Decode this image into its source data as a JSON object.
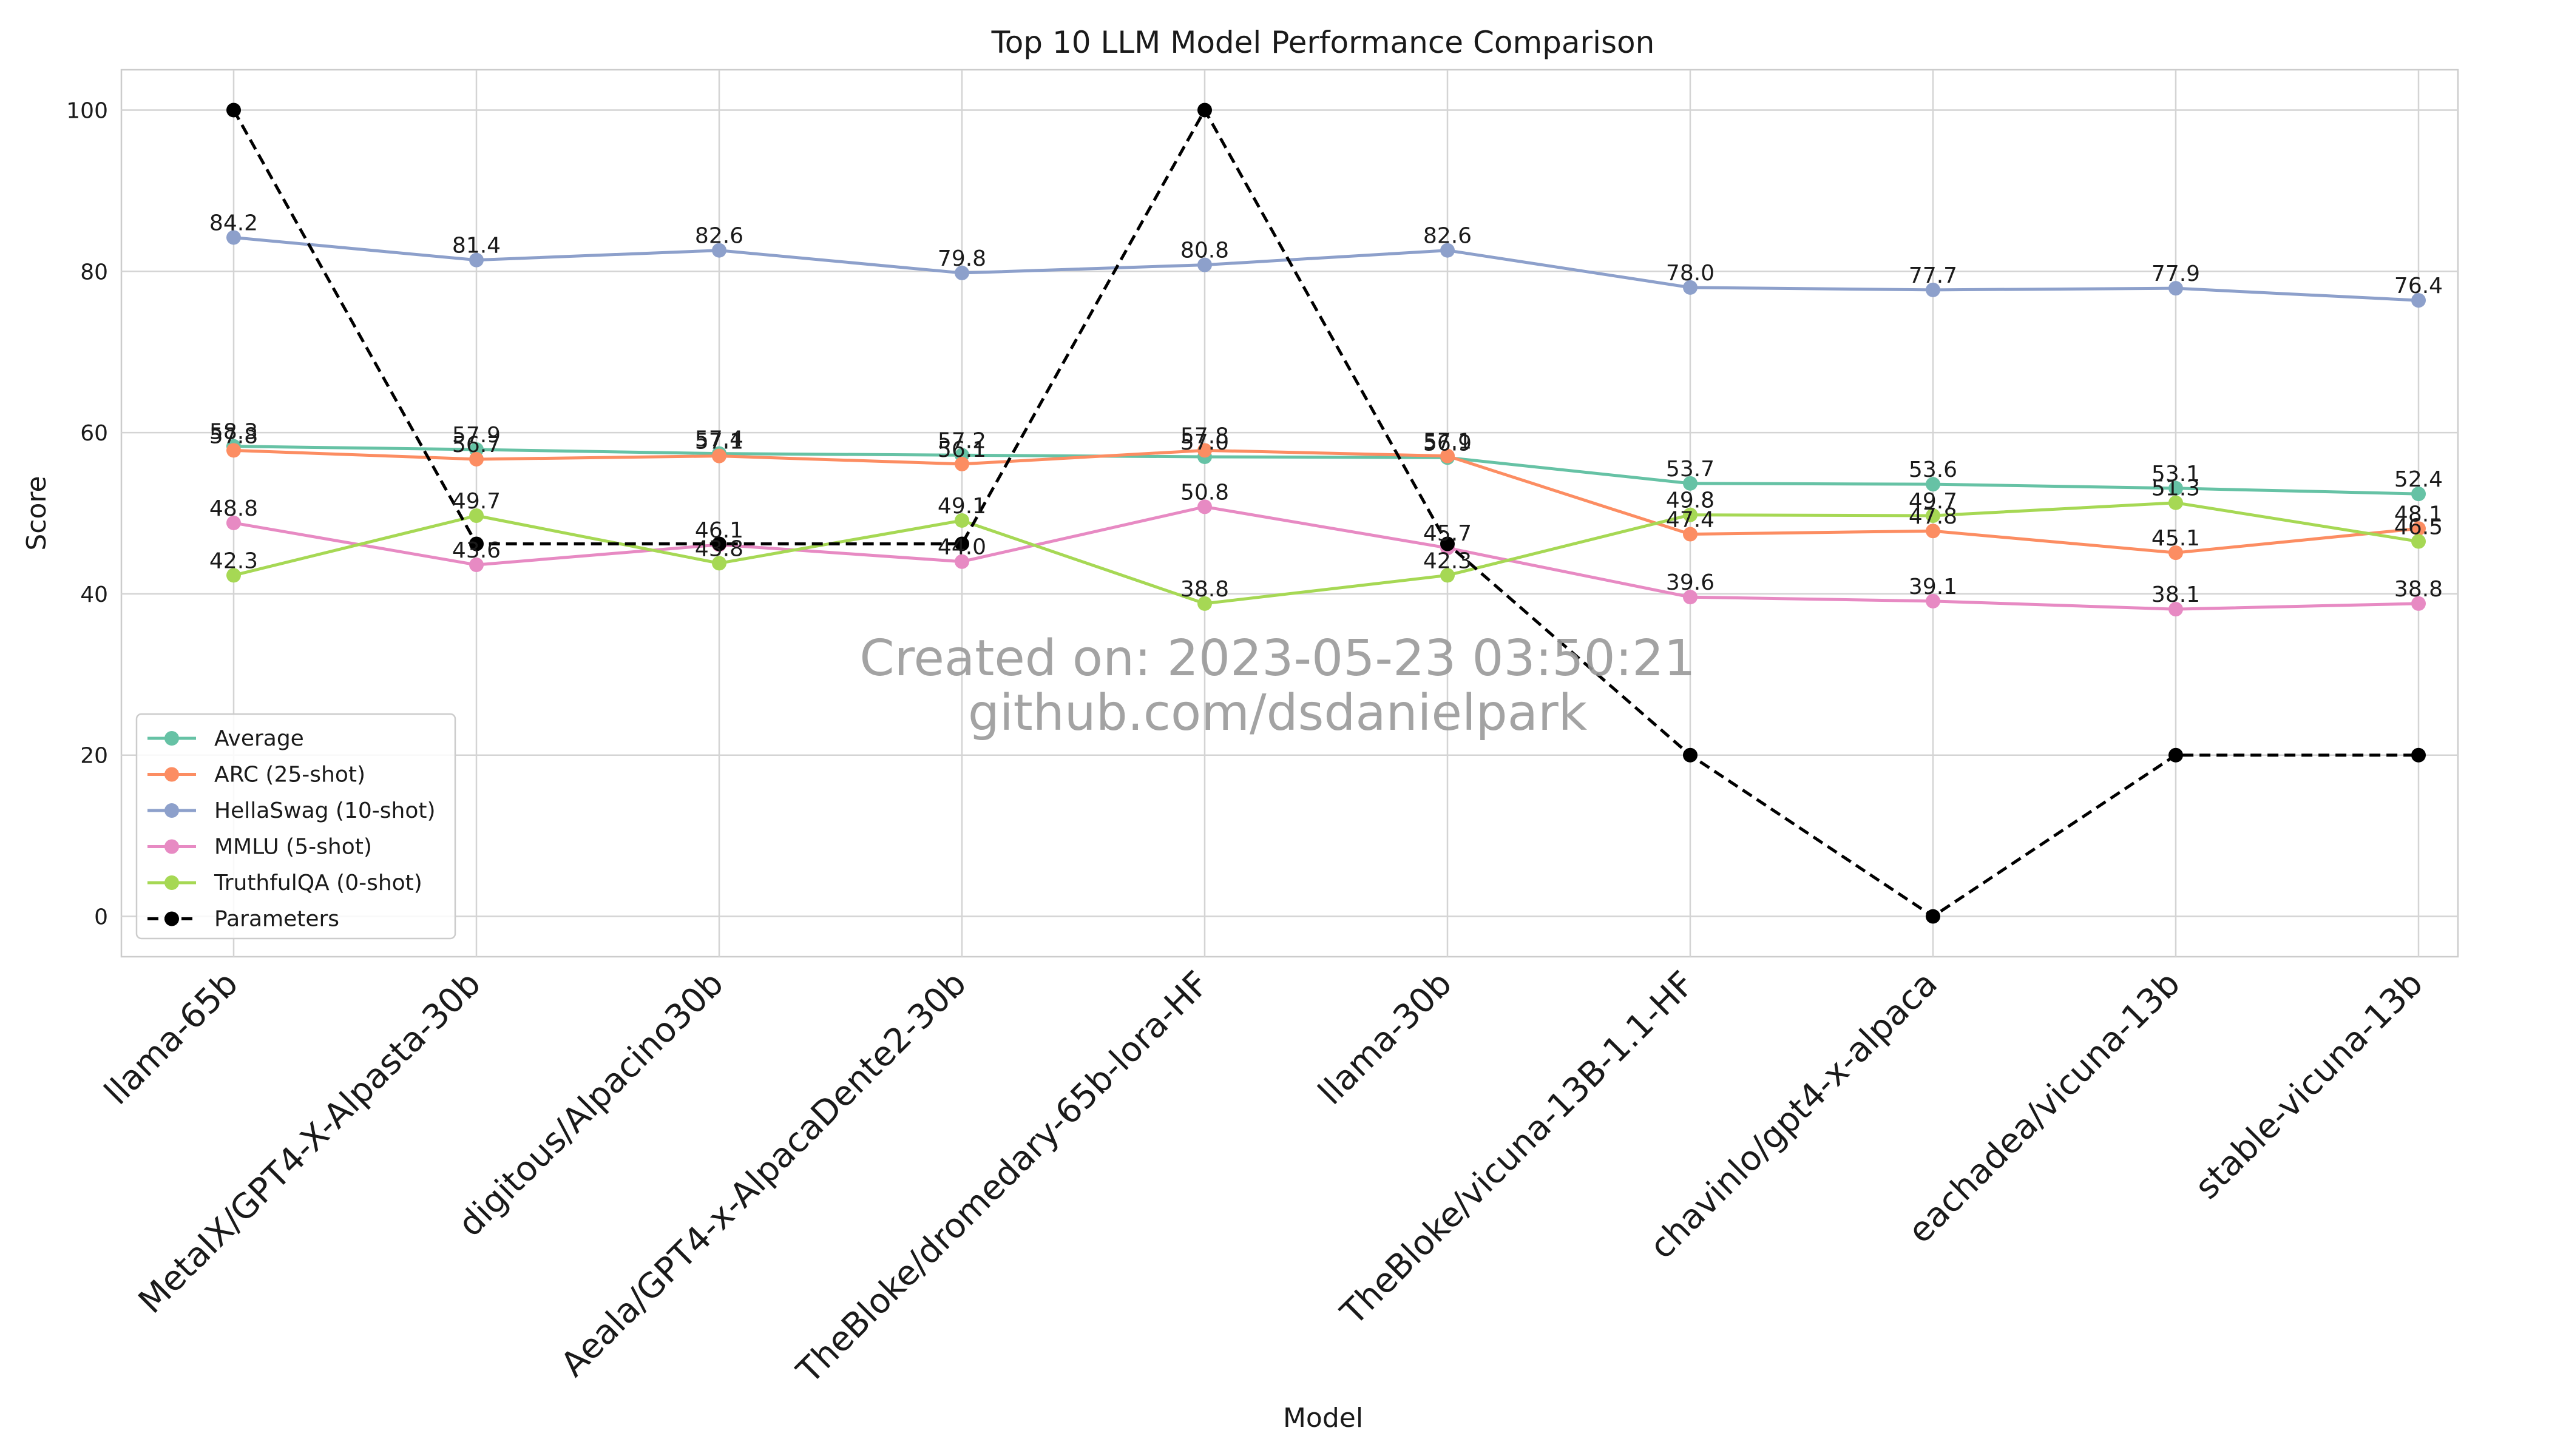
{
  "chart_data": {
    "type": "line",
    "title": "Top 10 LLM Model Performance Comparison",
    "xlabel": "Model",
    "ylabel": "Score",
    "ylim": [
      -5,
      105
    ],
    "yticks": [
      0,
      20,
      40,
      60,
      80,
      100
    ],
    "grid": true,
    "legend_position": "lower-left",
    "categories": [
      "llama-65b",
      "MetaIX/GPT4-X-Alpasta-30b",
      "digitous/Alpacino30b",
      "Aeala/GPT4-x-AlpacaDente2-30b",
      "TheBloke/dromedary-65b-lora-HF",
      "llama-30b",
      "TheBloke/vicuna-13B-1.1-HF",
      "chavinlo/gpt4-x-alpaca",
      "eachadea/vicuna-13b",
      "stable-vicuna-13b"
    ],
    "series": [
      {
        "name": "Average",
        "color": "#66c2a5",
        "dashed": false,
        "labeled": true,
        "values": [
          58.3,
          57.9,
          57.4,
          57.2,
          57.0,
          56.9,
          53.7,
          53.6,
          53.1,
          52.4
        ]
      },
      {
        "name": "ARC (25-shot)",
        "color": "#fc8d62",
        "dashed": false,
        "labeled": true,
        "values": [
          57.8,
          56.7,
          57.1,
          56.1,
          57.8,
          57.1,
          47.4,
          47.8,
          45.1,
          48.1
        ]
      },
      {
        "name": "HellaSwag (10-shot)",
        "color": "#8da0cb",
        "dashed": false,
        "labeled": true,
        "values": [
          84.2,
          81.4,
          82.6,
          79.8,
          80.8,
          82.6,
          78.0,
          77.7,
          77.9,
          76.4
        ]
      },
      {
        "name": "MMLU (5-shot)",
        "color": "#e78ac3",
        "dashed": false,
        "labeled": true,
        "values": [
          48.8,
          43.6,
          46.1,
          44.0,
          50.8,
          45.7,
          39.6,
          39.1,
          38.1,
          38.8
        ]
      },
      {
        "name": "TruthfulQA (0-shot)",
        "color": "#a6d854",
        "dashed": false,
        "labeled": true,
        "values": [
          42.3,
          49.7,
          43.8,
          49.1,
          38.8,
          42.3,
          49.8,
          49.7,
          51.3,
          46.5
        ]
      },
      {
        "name": "Parameters",
        "color": "#000000",
        "dashed": true,
        "labeled": false,
        "values": [
          100,
          46.2,
          46.2,
          46.2,
          100,
          46.2,
          20,
          0,
          20,
          20
        ]
      }
    ],
    "watermark": [
      "Created on: 2023-05-23 03:50:21",
      "github.com/dsdanielpark"
    ]
  }
}
